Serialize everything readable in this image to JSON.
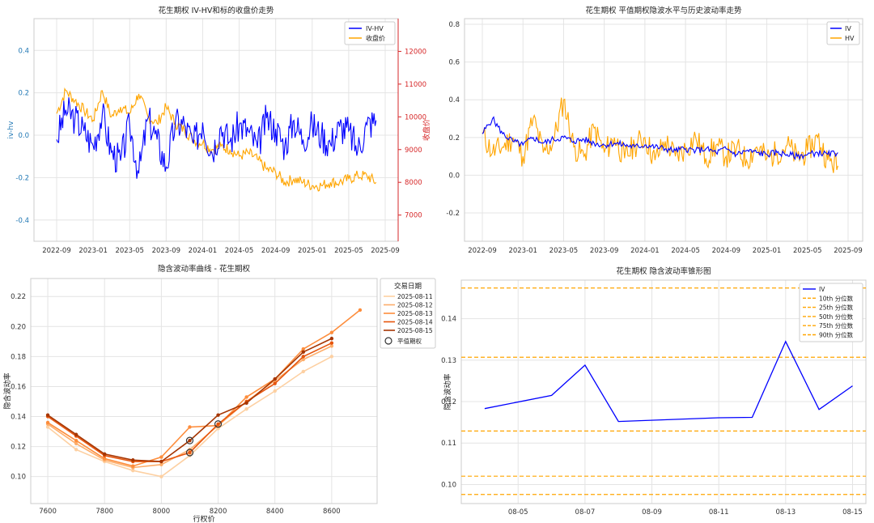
{
  "chart_data": [
    {
      "id": "p1",
      "type": "line",
      "title": "花生期权 IV-HV和标的收盘价走势",
      "ylabel": "iv-hv",
      "y2label": "收盘价",
      "x_ticks": [
        "2022-09",
        "2023-01",
        "2023-05",
        "2023-09",
        "2024-01",
        "2024-05",
        "2024-09",
        "2025-01",
        "2025-05",
        "2025-09"
      ],
      "y_ticks": [
        "0.4",
        "0.2",
        "0.0",
        "-0.2",
        "-0.4"
      ],
      "y2_ticks": [
        "12000",
        "11000",
        "10000",
        "9000",
        "8000",
        "7000"
      ],
      "ylim": [
        -0.5,
        0.55
      ],
      "y2lim": [
        6200,
        13000
      ],
      "grid": true,
      "legend": "top-right",
      "colors": {
        "iv_hv": "#0000ff",
        "close": "#ffa500",
        "left_axis": "#1f77b4",
        "right_axis": "#d62728"
      },
      "series": [
        {
          "name": "IV-HV",
          "key": "iv_hv",
          "x": [
            "2022-09",
            "2022-10",
            "2022-11",
            "2022-12",
            "2023-01",
            "2023-02",
            "2023-03",
            "2023-04",
            "2023-05",
            "2023-06",
            "2023-07",
            "2023-08",
            "2023-09",
            "2023-10",
            "2023-11",
            "2023-12",
            "2024-01",
            "2024-02",
            "2024-03",
            "2024-04",
            "2024-05",
            "2024-06",
            "2024-07",
            "2024-08",
            "2024-09",
            "2024-10",
            "2024-11",
            "2024-12",
            "2025-01",
            "2025-02",
            "2025-03",
            "2025-04",
            "2025-05",
            "2025-06",
            "2025-07",
            "2025-08"
          ],
          "values": [
            -0.02,
            0.12,
            0.08,
            0.02,
            -0.05,
            0.1,
            -0.08,
            -0.12,
            0.05,
            -0.18,
            0.08,
            -0.02,
            -0.15,
            0.06,
            0.05,
            -0.04,
            0.06,
            -0.08,
            0.04,
            -0.03,
            0.05,
            0.02,
            -0.06,
            0.08,
            0.03,
            -0.05,
            0.07,
            -0.02,
            0.05,
            0.0,
            -0.04,
            0.04,
            0.02,
            -0.07,
            0.05,
            0.07
          ]
        },
        {
          "name": "收盘价",
          "key": "close",
          "x": [
            "2022-09",
            "2022-10",
            "2022-11",
            "2022-12",
            "2023-01",
            "2023-02",
            "2023-03",
            "2023-04",
            "2023-05",
            "2023-06",
            "2023-07",
            "2023-08",
            "2023-09",
            "2023-10",
            "2023-11",
            "2023-12",
            "2024-01",
            "2024-02",
            "2024-03",
            "2024-04",
            "2024-05",
            "2024-06",
            "2024-07",
            "2024-08",
            "2024-09",
            "2024-10",
            "2024-11",
            "2024-12",
            "2025-01",
            "2025-02",
            "2025-03",
            "2025-04",
            "2025-05",
            "2025-06",
            "2025-07",
            "2025-08"
          ],
          "values": [
            10100,
            10800,
            10500,
            10200,
            9900,
            10800,
            10000,
            10300,
            10100,
            10700,
            10000,
            9800,
            10300,
            9800,
            9600,
            9300,
            9200,
            9000,
            9100,
            9000,
            8800,
            8900,
            8700,
            8400,
            8300,
            8000,
            8100,
            8000,
            7900,
            7900,
            8000,
            8000,
            8100,
            8200,
            8200,
            8000
          ]
        }
      ]
    },
    {
      "id": "p2",
      "type": "line",
      "title": "花生期权 平值期权隐波水平与历史波动率走势",
      "x_ticks": [
        "2022-09",
        "2023-01",
        "2023-05",
        "2023-09",
        "2024-01",
        "2024-05",
        "2024-09",
        "2025-01",
        "2025-05",
        "2025-09"
      ],
      "y_ticks": [
        "0.8",
        "0.6",
        "0.4",
        "0.2",
        "0.0",
        "-0.2"
      ],
      "ylim": [
        -0.35,
        0.83
      ],
      "grid": true,
      "legend": "top-right",
      "colors": {
        "iv": "#0000ff",
        "hv": "#ffa500"
      },
      "series": [
        {
          "name": "IV",
          "key": "iv",
          "x": [
            "2022-09",
            "2022-10",
            "2022-11",
            "2022-12",
            "2023-01",
            "2023-02",
            "2023-03",
            "2023-04",
            "2023-05",
            "2023-06",
            "2023-07",
            "2023-08",
            "2023-09",
            "2023-10",
            "2023-11",
            "2023-12",
            "2024-01",
            "2024-02",
            "2024-03",
            "2024-04",
            "2024-05",
            "2024-06",
            "2024-07",
            "2024-08",
            "2024-09",
            "2024-10",
            "2024-11",
            "2024-12",
            "2025-01",
            "2025-02",
            "2025-03",
            "2025-04",
            "2025-05",
            "2025-06",
            "2025-07",
            "2025-08"
          ],
          "values": [
            0.22,
            0.3,
            0.22,
            0.18,
            0.16,
            0.2,
            0.17,
            0.19,
            0.2,
            0.18,
            0.19,
            0.17,
            0.16,
            0.17,
            0.16,
            0.15,
            0.16,
            0.15,
            0.14,
            0.13,
            0.14,
            0.13,
            0.14,
            0.12,
            0.14,
            0.11,
            0.13,
            0.12,
            0.11,
            0.12,
            0.11,
            0.1,
            0.11,
            0.12,
            0.11,
            0.12
          ]
        },
        {
          "name": "HV",
          "key": "hv",
          "x": [
            "2022-09",
            "2022-10",
            "2022-11",
            "2022-12",
            "2023-01",
            "2023-02",
            "2023-03",
            "2023-04",
            "2023-05",
            "2023-06",
            "2023-07",
            "2023-08",
            "2023-09",
            "2023-10",
            "2023-11",
            "2023-12",
            "2024-01",
            "2024-02",
            "2024-03",
            "2024-04",
            "2024-05",
            "2024-06",
            "2024-07",
            "2024-08",
            "2024-09",
            "2024-10",
            "2024-11",
            "2024-12",
            "2025-01",
            "2025-02",
            "2025-03",
            "2025-04",
            "2025-05",
            "2025-06",
            "2025-07",
            "2025-08"
          ],
          "values": [
            0.22,
            0.12,
            0.15,
            0.2,
            0.1,
            0.3,
            0.12,
            0.18,
            0.4,
            0.15,
            0.1,
            0.25,
            0.12,
            0.2,
            0.09,
            0.16,
            0.2,
            0.08,
            0.18,
            0.1,
            0.14,
            0.2,
            0.09,
            0.16,
            0.1,
            0.14,
            0.08,
            0.15,
            0.09,
            0.12,
            0.16,
            0.09,
            0.13,
            0.2,
            0.08,
            0.05
          ]
        }
      ]
    },
    {
      "id": "p3",
      "type": "line",
      "title": "隐含波动率曲线 - 花生期权",
      "xlabel": "行权价",
      "ylabel": "隐含波动率",
      "x_ticks": [
        "7600",
        "7800",
        "8000",
        "8200",
        "8400",
        "8600"
      ],
      "y_ticks": [
        "0.22",
        "0.20",
        "0.18",
        "0.16",
        "0.14",
        "0.12",
        "0.10"
      ],
      "xlim": [
        7540,
        8760
      ],
      "ylim": [
        0.082,
        0.232
      ],
      "grid": true,
      "legend_title": "交易日期",
      "legend": "right-outside",
      "atm_label": "平值期权",
      "categories": [
        7600,
        7700,
        7800,
        7900,
        8000,
        8100,
        8200,
        8300,
        8400,
        8500,
        8600,
        8700
      ],
      "series": [
        {
          "name": "2025-08-11",
          "color": "#fdd0a2",
          "values": [
            0.133,
            0.118,
            0.11,
            0.104,
            0.1,
            0.114,
            0.132,
            0.145,
            0.157,
            0.17,
            0.18,
            null
          ]
        },
        {
          "name": "2025-08-12",
          "color": "#fdae6b",
          "values": [
            0.135,
            0.122,
            0.111,
            0.106,
            0.108,
            0.118,
            0.134,
            0.15,
            0.164,
            0.178,
            0.187,
            null
          ]
        },
        {
          "name": "2025-08-13",
          "color": "#fd8d3c",
          "values": [
            0.136,
            0.124,
            0.112,
            0.107,
            0.113,
            0.133,
            0.134,
            0.153,
            0.165,
            0.185,
            0.196,
            0.211
          ]
        },
        {
          "name": "2025-08-14",
          "color": "#e6550d",
          "values": [
            0.14,
            0.127,
            0.114,
            0.11,
            0.11,
            0.116,
            0.135,
            0.15,
            0.162,
            0.18,
            0.189,
            null
          ]
        },
        {
          "name": "2025-08-15",
          "color": "#a63603",
          "values": [
            0.141,
            0.128,
            0.115,
            0.111,
            0.11,
            0.124,
            0.141,
            0.149,
            0.165,
            0.183,
            0.192,
            null
          ]
        }
      ],
      "atm_points": [
        {
          "x": 8100,
          "y": 0.124
        },
        {
          "x": 8100,
          "y": 0.116
        },
        {
          "x": 8200,
          "y": 0.135
        }
      ]
    },
    {
      "id": "p4",
      "type": "line",
      "title": "花生期权 隐含波动率锥形图",
      "ylabel": "隐含波动率",
      "x_ticks": [
        "08-05",
        "08-07",
        "08-09",
        "08-11",
        "08-13",
        "08-15"
      ],
      "y_ticks": [
        "0.14",
        "0.13",
        "0.12",
        "0.11",
        "0.10"
      ],
      "xlim": [
        3.3,
        15.4
      ],
      "ylim": [
        0.0954,
        0.1493
      ],
      "grid": true,
      "legend": "top-right",
      "colors": {
        "iv": "#0000ff",
        "quantile": "#ffa500"
      },
      "x": [
        4,
        6,
        7,
        8,
        11,
        12,
        13,
        14,
        15
      ],
      "series": [
        {
          "name": "IV",
          "values": [
            0.1183,
            0.1215,
            0.1288,
            0.1152,
            0.1161,
            0.1162,
            0.1345,
            0.1181,
            0.1238
          ]
        }
      ],
      "quantiles": [
        {
          "name": "10th 分位数",
          "value": 0.0976
        },
        {
          "name": "25th 分位数",
          "value": 0.102
        },
        {
          "name": "50th 分位数",
          "value": 0.1129
        },
        {
          "name": "75th 分位数",
          "value": 0.1307
        },
        {
          "name": "90th 分位数",
          "value": 0.1474
        }
      ]
    }
  ]
}
